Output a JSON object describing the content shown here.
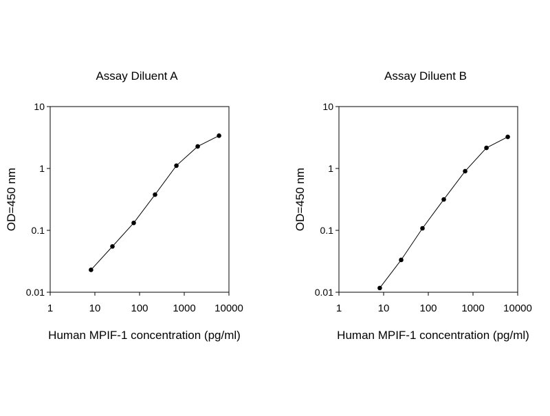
{
  "chart_data": [
    {
      "type": "line",
      "title": "Assay Diluent A",
      "xlabel": "Human MPIF-1 concentration (pg/ml)",
      "ylabel": "OD=450 nm",
      "xscale": "log",
      "yscale": "log",
      "xlim": [
        1,
        10000
      ],
      "ylim": [
        0.01,
        10
      ],
      "xticks": [
        "1",
        "10",
        "100",
        "1000",
        "10000"
      ],
      "yticks": [
        "0.01",
        "0.1",
        "1",
        "10"
      ],
      "grid": false,
      "markers": true,
      "x": [
        8.2,
        24.7,
        74,
        222,
        667,
        2000,
        6000
      ],
      "y": [
        0.023,
        0.055,
        0.132,
        0.378,
        1.11,
        2.27,
        3.39
      ]
    },
    {
      "type": "line",
      "title": "Assay Diluent B",
      "xlabel": "Human MPIF-1 concentration (pg/ml)",
      "ylabel": "OD=450 nm",
      "xscale": "log",
      "yscale": "log",
      "xlim": [
        1,
        10000
      ],
      "ylim": [
        0.01,
        10
      ],
      "xticks": [
        "1",
        "10",
        "100",
        "1000",
        "10000"
      ],
      "yticks": [
        "0.01",
        "0.1",
        "1",
        "10"
      ],
      "grid": false,
      "markers": true,
      "x": [
        8.2,
        24.7,
        74,
        222,
        667,
        2000,
        6000
      ],
      "y": [
        0.0117,
        0.0333,
        0.108,
        0.316,
        0.904,
        2.15,
        3.24
      ]
    }
  ]
}
